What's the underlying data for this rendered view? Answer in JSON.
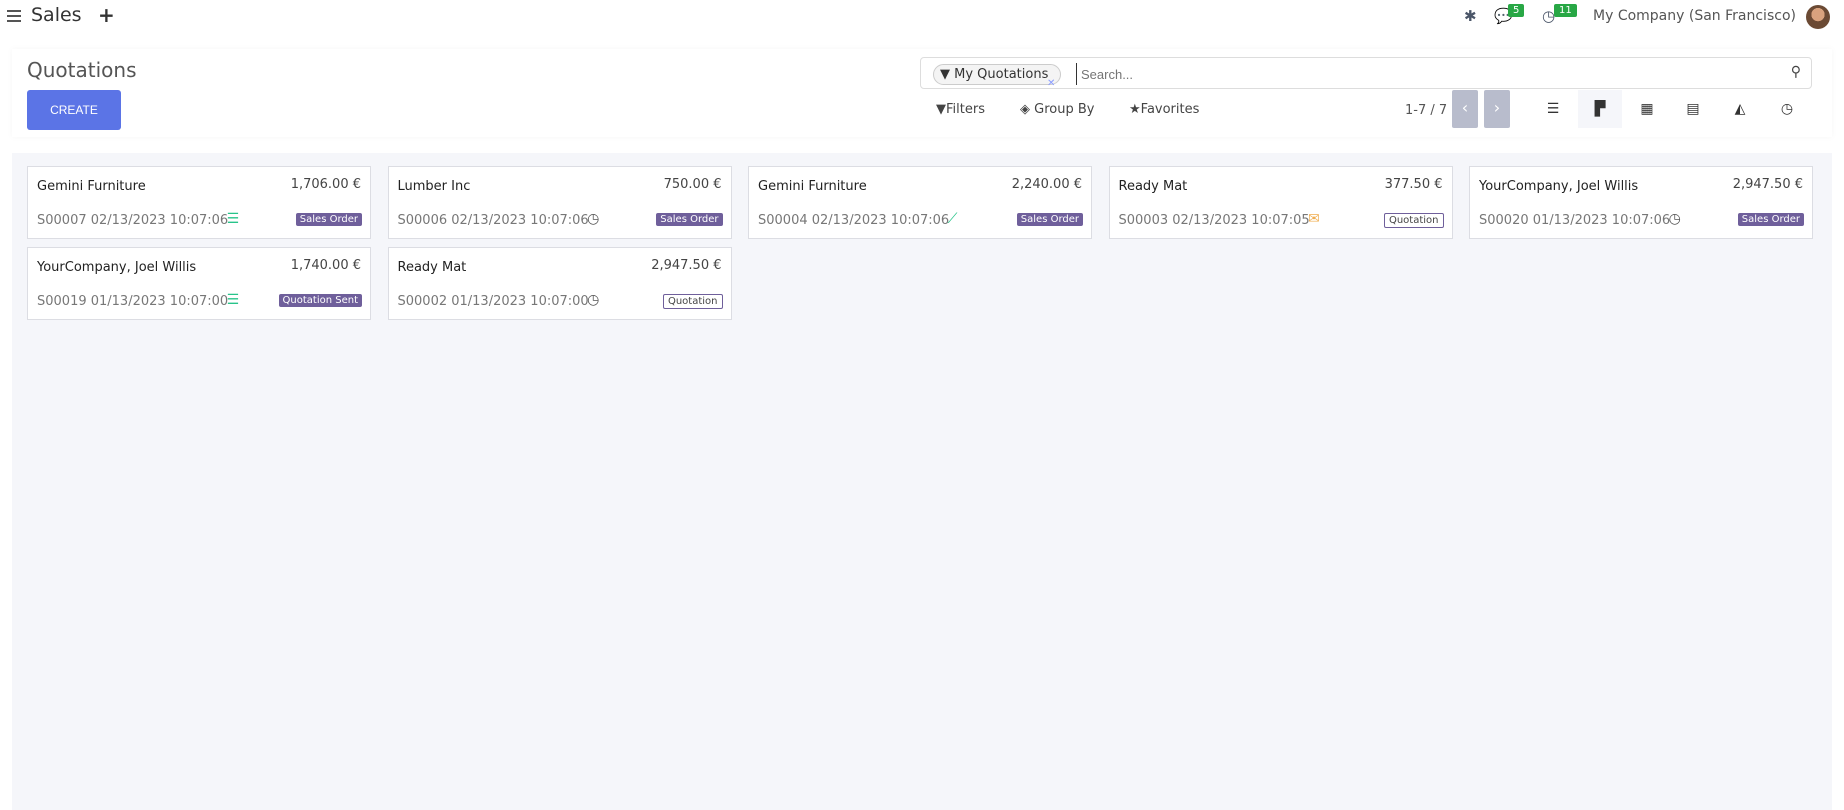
{
  "topbar": {
    "app": "Sales",
    "messages_count": "5",
    "activities_count": "11",
    "company": "My Company (San Francisco)"
  },
  "control": {
    "title": "Quotations",
    "create": "CREATE",
    "facet": "My Quotations",
    "search_placeholder": "Search...",
    "filters": "Filters",
    "group_by": "Group By",
    "favorites": "Favorites",
    "pager": "1-7 / 7"
  },
  "colors": {
    "primary": "#5b74e6",
    "tag": "#6f5f9b",
    "activity_green": "#28c48a",
    "activity_orange": "#f0ad4e"
  },
  "cards": [
    {
      "customer": "Gemini Furniture",
      "amount": "1,706.00 €",
      "ref": "S00007 02/13/2023 10:07:06",
      "icon": "tasks-icon",
      "icon_glyph": "☰",
      "icon_color": "#28c48a",
      "tag": "Sales Order",
      "outline": false
    },
    {
      "customer": "Lumber Inc",
      "amount": "750.00 €",
      "ref": "S00006 02/13/2023 10:07:06",
      "icon": "clock-icon",
      "icon_glyph": "◷",
      "icon_color": "#555",
      "tag": "Sales Order",
      "outline": false
    },
    {
      "customer": "Gemini Furniture",
      "amount": "2,240.00 €",
      "ref": "S00004 02/13/2023 10:07:06",
      "icon": "chart-line-icon",
      "icon_glyph": "⟋",
      "icon_color": "#28c48a",
      "tag": "Sales Order",
      "outline": false
    },
    {
      "customer": "Ready Mat",
      "amount": "377.50 €",
      "ref": "S00003 02/13/2023 10:07:05",
      "icon": "envelope-icon",
      "icon_glyph": "✉",
      "icon_color": "#f0ad4e",
      "tag": "Quotation",
      "outline": true
    },
    {
      "customer": "YourCompany, Joel Willis",
      "amount": "2,947.50 €",
      "ref": "S00020 01/13/2023 10:07:06",
      "icon": "clock-icon",
      "icon_glyph": "◷",
      "icon_color": "#555",
      "tag": "Sales Order",
      "outline": false
    },
    {
      "customer": "YourCompany, Joel Willis",
      "amount": "1,740.00 €",
      "ref": "S00019 01/13/2023 10:07:00",
      "icon": "tasks-icon",
      "icon_glyph": "☰",
      "icon_color": "#28c48a",
      "tag": "Quotation Sent",
      "outline": false
    },
    {
      "customer": "Ready Mat",
      "amount": "2,947.50 €",
      "ref": "S00002 01/13/2023 10:07:00",
      "icon": "clock-icon",
      "icon_glyph": "◷",
      "icon_color": "#555",
      "tag": "Quotation",
      "outline": true
    }
  ]
}
